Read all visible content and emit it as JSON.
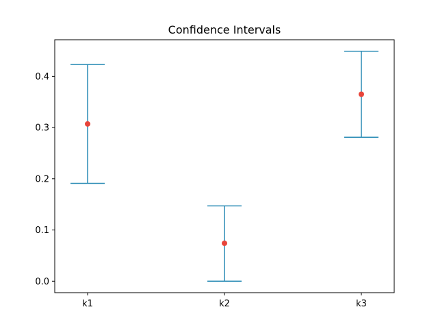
{
  "chart_data": {
    "type": "errorbar",
    "title": "Confidence Intervals",
    "xlabel": "",
    "ylabel": "",
    "categories": [
      "k1",
      "k2",
      "k3"
    ],
    "series": [
      {
        "values": [
          0.307,
          0.074,
          0.365
        ],
        "lower": [
          0.191,
          0.0,
          0.281
        ],
        "upper": [
          0.423,
          0.147,
          0.449
        ]
      }
    ],
    "ylim": [
      -0.0224,
      0.4714
    ],
    "yticks": [
      0.0,
      0.1,
      0.2,
      0.3,
      0.4
    ],
    "ytick_labels": [
      "0.0",
      "0.1",
      "0.2",
      "0.3",
      "0.4"
    ],
    "grid": false,
    "colors": {
      "errorbar": "#2a8bb5",
      "point": "#e8443a",
      "axis": "#000000"
    }
  }
}
